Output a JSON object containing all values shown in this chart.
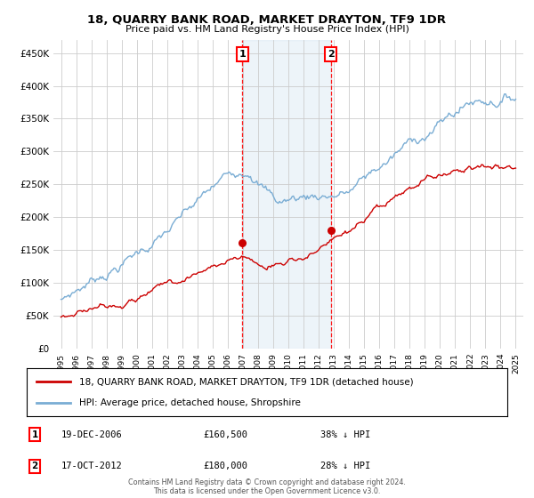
{
  "title": "18, QUARRY BANK ROAD, MARKET DRAYTON, TF9 1DR",
  "subtitle": "Price paid vs. HM Land Registry's House Price Index (HPI)",
  "legend_line1": "18, QUARRY BANK ROAD, MARKET DRAYTON, TF9 1DR (detached house)",
  "legend_line2": "HPI: Average price, detached house, Shropshire",
  "sale1_date": "19-DEC-2006",
  "sale1_price": 160500,
  "sale1_label": "38% ↓ HPI",
  "sale2_date": "17-OCT-2012",
  "sale2_price": 180000,
  "sale2_label": "28% ↓ HPI",
  "sale1_x": 2006.96,
  "sale2_x": 2012.79,
  "footer": "Contains HM Land Registry data © Crown copyright and database right 2024.\nThis data is licensed under the Open Government Licence v3.0.",
  "hpi_color": "#7aadd4",
  "price_color": "#cc0000",
  "ylim": [
    0,
    470000
  ],
  "xlim": [
    1994.5,
    2025.5
  ],
  "background_color": "#ffffff",
  "grid_color": "#cccccc",
  "shade_color": "#cce0f0"
}
